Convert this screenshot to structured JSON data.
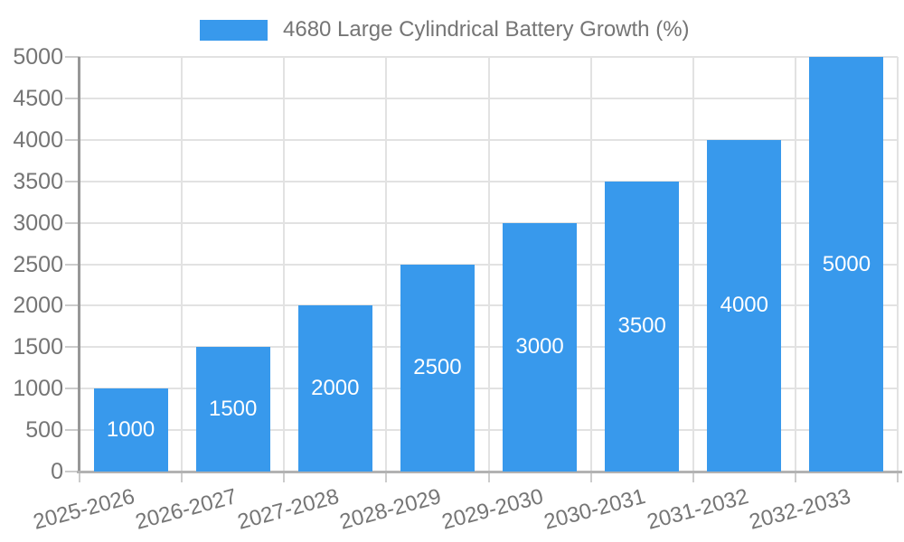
{
  "legend": {
    "label": "4680 Large Cylindrical Battery Growth (%)",
    "swatch_color": "#3899ec"
  },
  "chart_data": {
    "type": "bar",
    "title": "4680 Large Cylindrical Battery Growth (%)",
    "categories": [
      "2025-2026",
      "2026-2027",
      "2027-2028",
      "2028-2029",
      "2029-2030",
      "2030-2031",
      "2031-2032",
      "2032-2033"
    ],
    "values": [
      1000,
      1500,
      2000,
      2500,
      3000,
      3500,
      4000,
      5000
    ],
    "data_labels": [
      "1000",
      "1500",
      "2000",
      "2500",
      "3000",
      "3500",
      "4000",
      "5000"
    ],
    "y_tick_labels": [
      "0",
      "500",
      "1000",
      "1500",
      "2000",
      "2500",
      "3000",
      "3500",
      "4000",
      "4500",
      "5000"
    ],
    "xlabel": "",
    "ylabel": "",
    "ylim": [
      0,
      5000
    ],
    "ytick_step": 500,
    "grid": "both",
    "legend_position": "top-center",
    "x_label_rotation_deg": -15,
    "bar_color": "#3899ec",
    "data_label_color": "#ffffff",
    "axis_text_color": "#757575",
    "gridline_color": "#e2e2e2"
  }
}
